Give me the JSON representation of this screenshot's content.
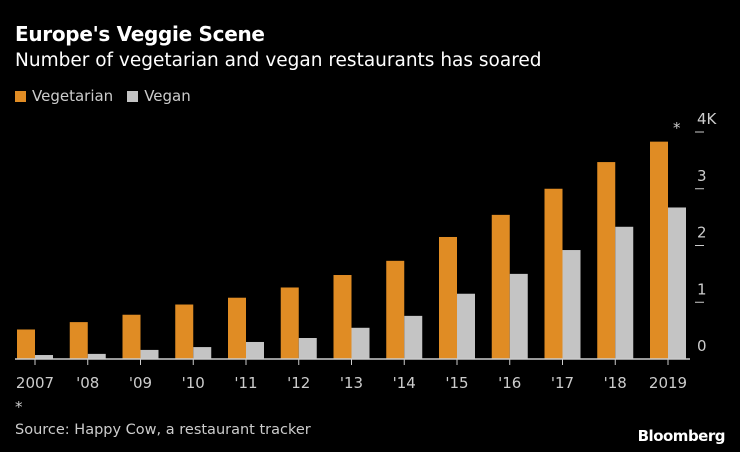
{
  "title": "Europe's Veggie Scene",
  "subtitle": "Number of vegetarian and vegan restaurants has soared",
  "source": "Source: Happy Cow, a restaurant tracker",
  "logo": "Bloomberg",
  "chart_data": {
    "type": "bar",
    "title": "Europe's Veggie Scene",
    "subtitle": "Number of vegetarian and vegan restaurants has soared",
    "categories": [
      "2007",
      "'08",
      "'09",
      "'10",
      "'11",
      "'12",
      "'13",
      "'14",
      "'15",
      "'16",
      "'17",
      "'18",
      "2019"
    ],
    "series": [
      {
        "name": "Vegetarian",
        "color": "#e08c24",
        "values": [
          0.52,
          0.65,
          0.78,
          0.96,
          1.08,
          1.26,
          1.48,
          1.73,
          2.15,
          2.54,
          3.0,
          3.47,
          3.83
        ]
      },
      {
        "name": "Vegan",
        "color": "#c4c4c4",
        "values": [
          0.07,
          0.09,
          0.16,
          0.21,
          0.3,
          0.37,
          0.55,
          0.76,
          1.15,
          1.5,
          1.92,
          2.33,
          2.67
        ]
      }
    ],
    "yticks": [
      "0",
      "1",
      "2",
      "3",
      "4K"
    ],
    "ylim": [
      0,
      4
    ],
    "ylabel": "",
    "xlabel": "",
    "annotations": [
      "*",
      "*"
    ],
    "legend": "top-left",
    "grid": false
  }
}
